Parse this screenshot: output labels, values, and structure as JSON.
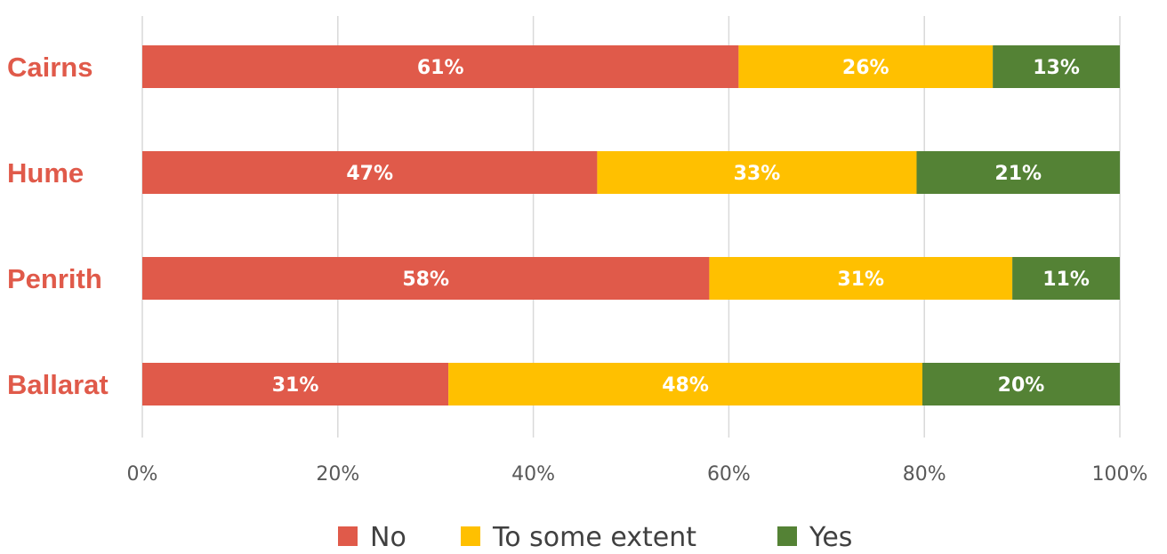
{
  "chart_data": {
    "type": "bar",
    "orientation": "horizontal",
    "stacked": true,
    "categories": [
      "Cairns",
      "Hume",
      "Penrith",
      "Ballarat"
    ],
    "series": [
      {
        "name": "No",
        "values": [
          61,
          47,
          58,
          31
        ],
        "labels": [
          "61%",
          "47%",
          "58%",
          "31%"
        ],
        "color": "#E05A4A"
      },
      {
        "name": "To some extent",
        "values": [
          26,
          33,
          31,
          48
        ],
        "labels": [
          "26%",
          "33%",
          "31%",
          "48%"
        ],
        "color": "#FFC000"
      },
      {
        "name": "Yes",
        "values": [
          13,
          21,
          11,
          20
        ],
        "labels": [
          "13%",
          "21%",
          "11%",
          "20%"
        ],
        "color": "#548235"
      }
    ],
    "xlim": [
      0,
      100
    ],
    "xticks": [
      0,
      20,
      40,
      60,
      80,
      100
    ],
    "xtick_labels": [
      "0%",
      "20%",
      "40%",
      "60%",
      "80%",
      "100%"
    ],
    "category_label_color": "#E05A4A",
    "grid": true,
    "legend_position": "bottom"
  }
}
